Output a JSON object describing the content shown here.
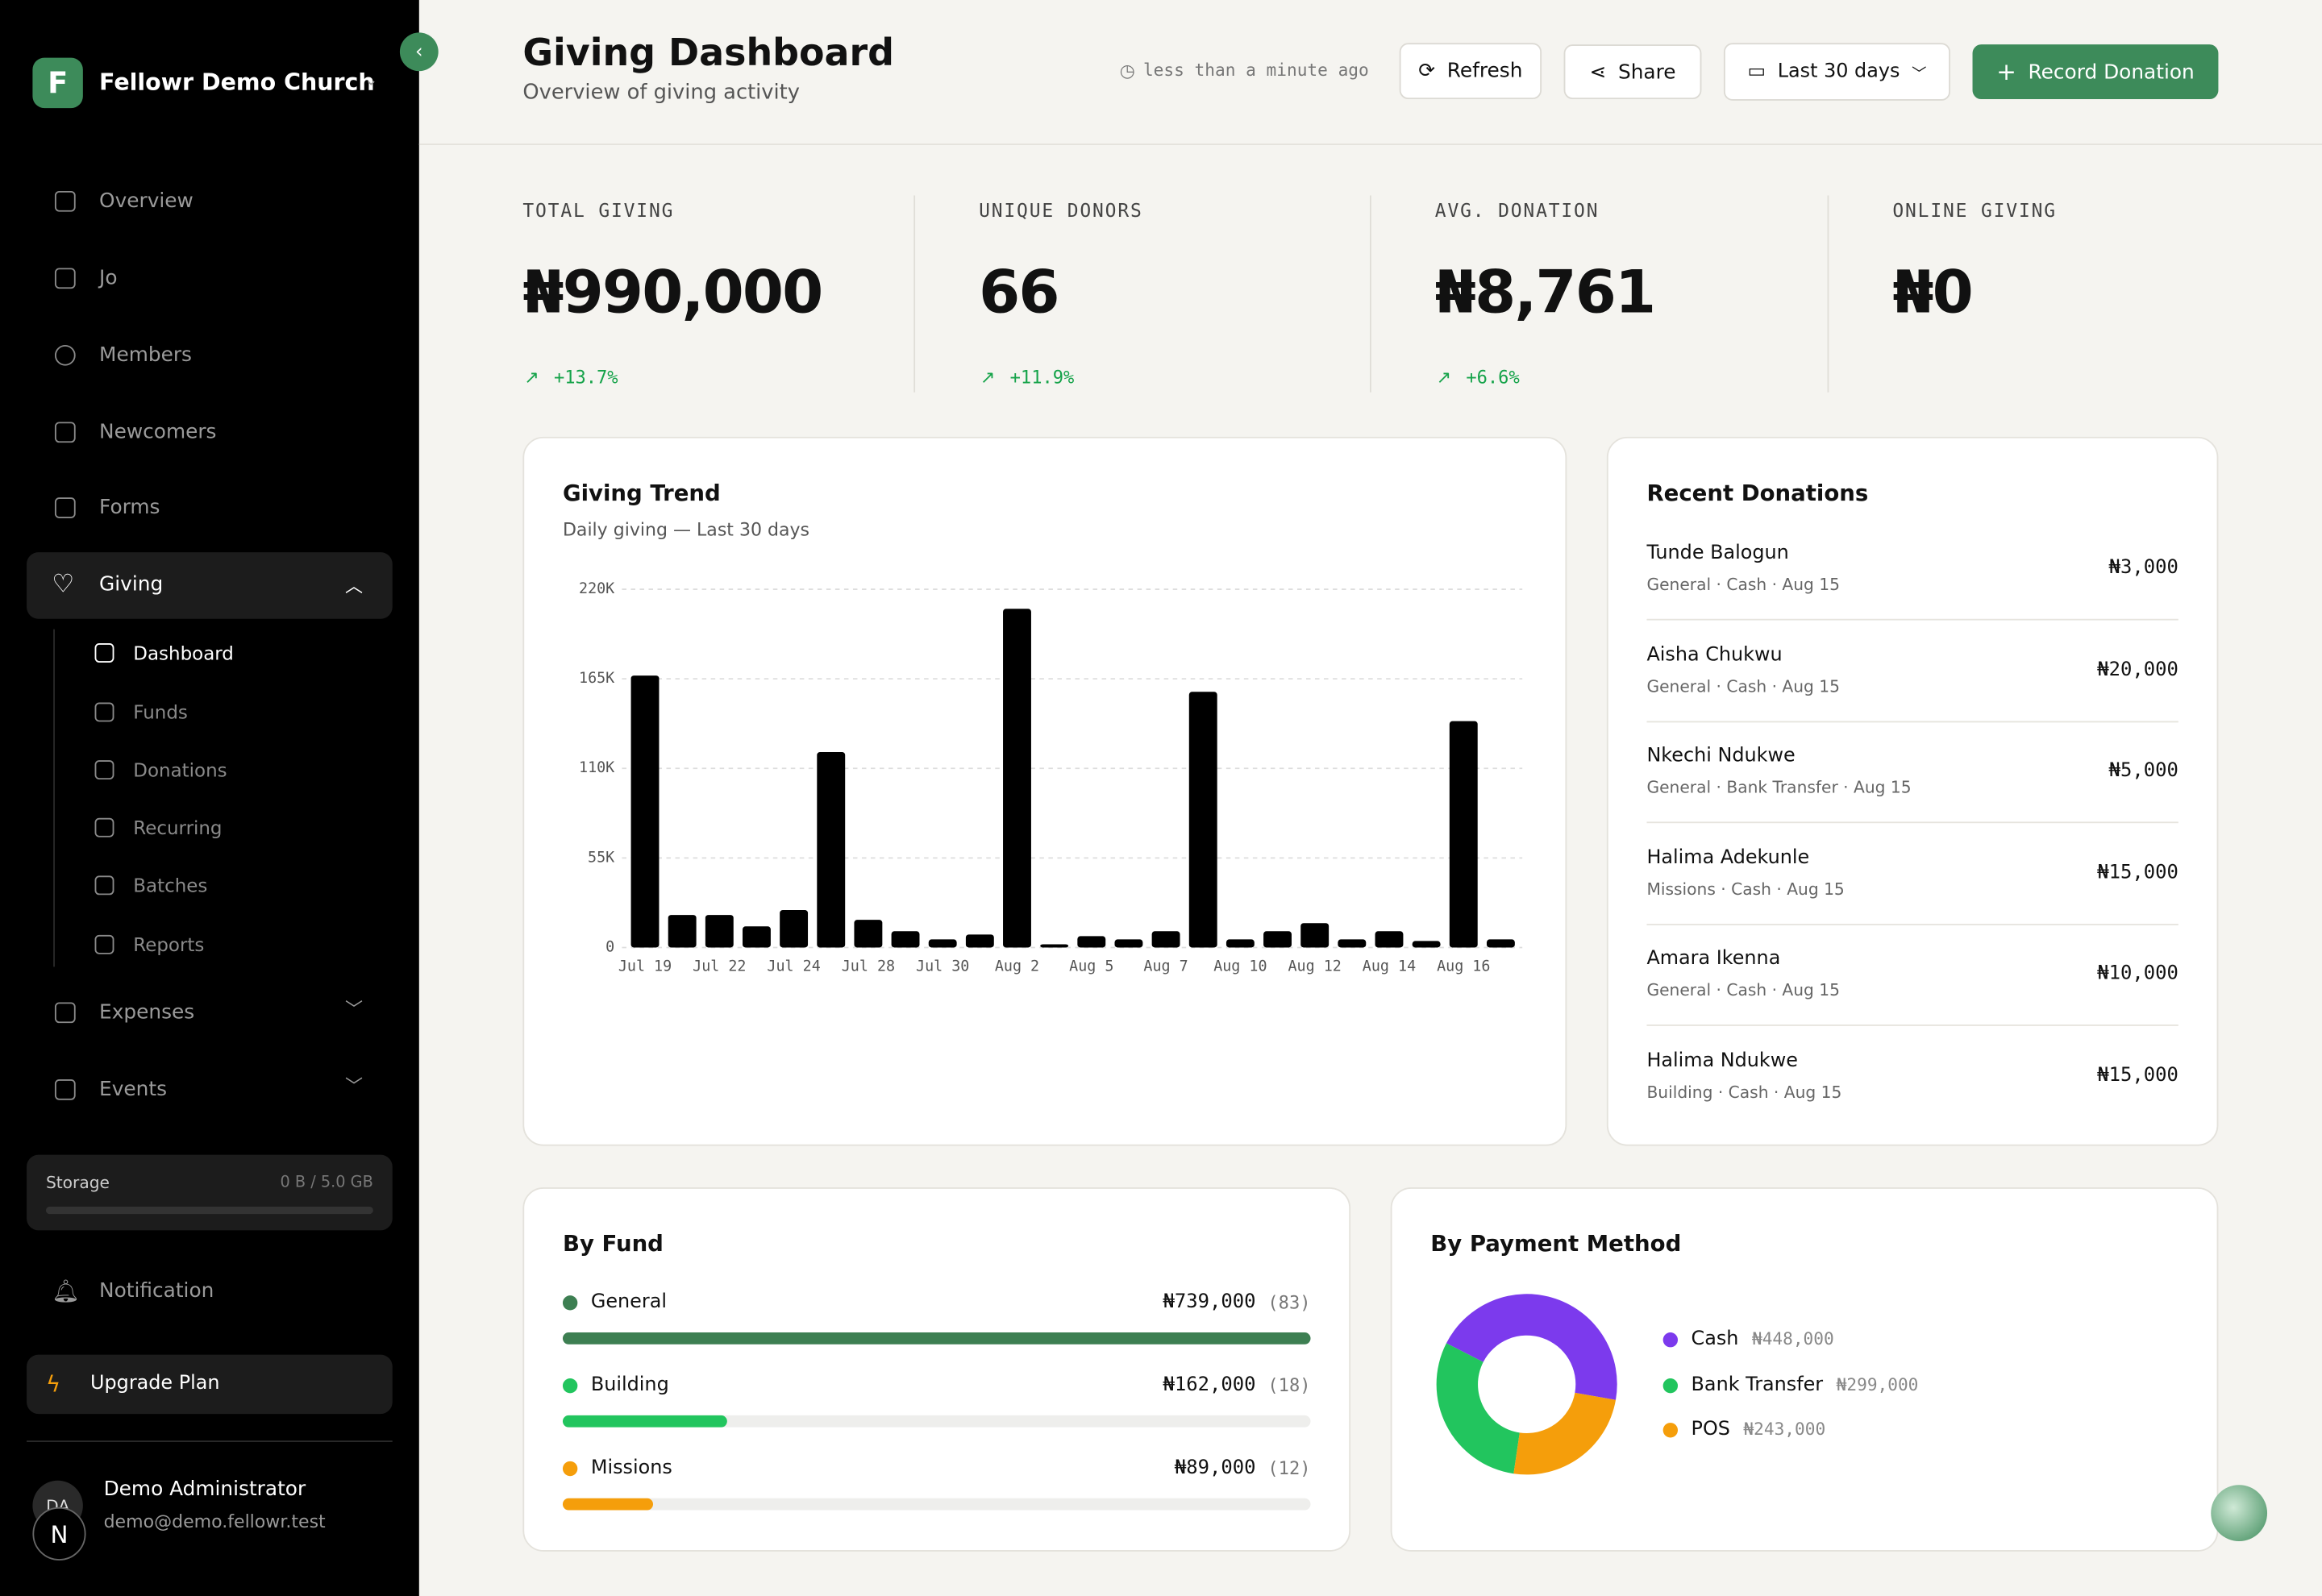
{
  "sidebar": {
    "logo": "F",
    "org": "Fellowr Demo Church",
    "nav": [
      "Overview",
      "Jo",
      "Members",
      "Newcomers",
      "Forms"
    ],
    "giving": "Giving",
    "giving_sub": [
      "Dashboard",
      "Funds",
      "Donations",
      "Recurring",
      "Batches",
      "Reports"
    ],
    "nav_after": [
      "Expenses",
      "Events"
    ],
    "storage": {
      "label": "Storage",
      "usage": "0 B / 5.0 GB"
    },
    "notification": "Notification",
    "upgrade": "Upgrade Plan",
    "user": {
      "initials": "DA",
      "badge": "N",
      "name": "Demo Administrator",
      "email": "demo@demo.fellowr.test"
    }
  },
  "header": {
    "title": "Giving Dashboard",
    "subtitle": "Overview of giving activity",
    "updated": "less than a minute ago",
    "buttons": [
      "Refresh",
      "Share",
      "Last 30 days",
      "Record Donation"
    ]
  },
  "stats": [
    {
      "label": "TOTAL GIVING",
      "value": "₦990,000",
      "change": "+13.7%"
    },
    {
      "label": "UNIQUE DONORS",
      "value": "66",
      "change": "+11.9%"
    },
    {
      "label": "AVG. DONATION",
      "value": "₦8,761",
      "change": "+6.6%"
    },
    {
      "label": "ONLINE GIVING",
      "value": "₦0"
    }
  ],
  "giving_trend": {
    "type": "bar",
    "title": "Giving Trend",
    "subtitle": "Daily giving — Last 30 days",
    "categories": [
      "Jul 19",
      null,
      "Jul 22",
      null,
      "Jul 24",
      null,
      "Jul 28",
      null,
      "Jul 30",
      null,
      "Aug 2",
      null,
      "Aug 5",
      null,
      "Aug 7",
      null,
      "Aug 10",
      null,
      "Aug 12",
      null,
      "Aug 14",
      null,
      "Aug 16",
      null
    ],
    "values": [
      167000,
      20000,
      20000,
      13000,
      23000,
      120000,
      17000,
      10000,
      5000,
      8000,
      208000,
      2000,
      7000,
      5000,
      10000,
      157000,
      5000,
      10000,
      15000,
      5000,
      10000,
      4000,
      139000,
      5000
    ],
    "color": "#000000",
    "ylim": [
      0,
      220000
    ],
    "yticks": [
      0,
      {
        "value": 55000,
        "label": "55K"
      },
      {
        "value": 110000,
        "label": "110K"
      },
      {
        "value": 165000,
        "label": "165K"
      },
      {
        "value": 220000,
        "label": "220K"
      }
    ],
    "grid": true
  },
  "recent_donations": {
    "title": "Recent Donations",
    "items": [
      {
        "name": "Tunde Balogun",
        "meta": "General · Cash · Aug 15",
        "amount": "₦3,000"
      },
      {
        "name": "Aisha Chukwu",
        "meta": "General · Cash · Aug 15",
        "amount": "₦20,000"
      },
      {
        "name": "Nkechi Ndukwe",
        "meta": "General · Bank Transfer · Aug 15",
        "amount": "₦5,000"
      },
      {
        "name": "Halima Adekunle",
        "meta": "Missions · Cash · Aug 15",
        "amount": "₦15,000"
      },
      {
        "name": "Amara Ikenna",
        "meta": "General · Cash · Aug 15",
        "amount": "₦10,000"
      },
      {
        "name": "Halima Ndukwe",
        "meta": "Building · Cash · Aug 15",
        "amount": "₦15,000"
      }
    ]
  },
  "by_fund": {
    "title": "By Fund",
    "funds": [
      {
        "name": "General",
        "color": "#3d7f52",
        "amount": 739000,
        "amount_label": "₦739,000",
        "count": "(83)"
      },
      {
        "name": "Building",
        "color": "#22c55e",
        "amount": 162000,
        "amount_label": "₦162,000",
        "count": "(18)"
      },
      {
        "name": "Missions",
        "color": "#f59e0b",
        "amount": 89000,
        "amount_label": "₦89,000",
        "count": "(12)"
      }
    ]
  },
  "by_payment": {
    "type": "pie",
    "title": "By Payment Method",
    "categories": [
      "Cash",
      "Bank Transfer",
      "POS"
    ],
    "values": [
      448000,
      299000,
      243000
    ],
    "value_labels": [
      "₦448,000",
      "₦299,000",
      "₦243,000"
    ],
    "colors": [
      "#7c3aed",
      "#22c55e",
      "#f59e0b"
    ]
  }
}
